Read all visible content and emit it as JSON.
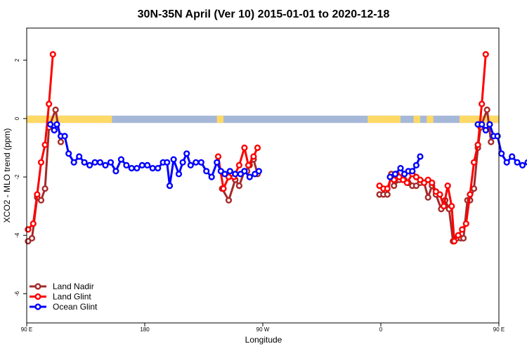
{
  "chart_data": {
    "type": "line",
    "title": "30N-35N April (Ver 10)   2015-01-01 to 2020-12-18",
    "xlabel": "Longitude",
    "ylabel": "XCO2 - MLO trend (ppm)",
    "xlim": [
      90,
      450
    ],
    "ylim": [
      -7,
      3.1
    ],
    "x_ticks": [
      {
        "value": 90,
        "label": "90 E"
      },
      {
        "value": 180,
        "label": "180"
      },
      {
        "value": 270,
        "label": "90 W"
      },
      {
        "value": 360,
        "label": "0"
      },
      {
        "value": 450,
        "label": "90 E"
      },
      {
        "value": 540,
        "label": "180"
      }
    ],
    "y_ticks": [
      {
        "value": 2,
        "label": "2"
      },
      {
        "value": 0,
        "label": "0"
      },
      {
        "value": -2,
        "label": "-2"
      },
      {
        "value": -4,
        "label": "-4"
      },
      {
        "value": -6,
        "label": "-6"
      }
    ],
    "land_ocean_band": {
      "y_range": [
        -0.15,
        0.1
      ],
      "ocean_color": "#a6b8d8",
      "land_color": "#ffd966",
      "land_ranges": [
        [
          90,
          155
        ],
        [
          235,
          240
        ],
        [
          350,
          375
        ],
        [
          385,
          390
        ],
        [
          395,
          400
        ],
        [
          420,
          450
        ],
        [
          450,
          515
        ]
      ]
    },
    "legend_position": "bottom-left",
    "series": [
      {
        "name": "Land Nadir",
        "color": "#a52a2a",
        "segments": [
          [
            [
              91,
              -4.2
            ],
            [
              94,
              -4.1
            ],
            [
              98,
              -2.7
            ],
            [
              101,
              -2.8
            ],
            [
              104,
              -2.4
            ],
            [
              107,
              -0.3
            ],
            [
              112,
              0.3
            ],
            [
              116,
              -0.8
            ]
          ],
          [
            [
              239,
              -2.4
            ],
            [
              244,
              -2.8
            ],
            [
              249,
              -2.1
            ],
            [
              252,
              -2.3
            ],
            [
              256,
              -1.8
            ],
            [
              258,
              -1.8
            ],
            [
              260,
              -1.6
            ],
            [
              263,
              -1.4
            ],
            [
              266,
              -1.9
            ]
          ],
          [
            [
              359,
              -2.6
            ],
            [
              362,
              -2.6
            ],
            [
              365,
              -2.6
            ],
            [
              368,
              -1.9
            ],
            [
              370,
              -2.3
            ],
            [
              374,
              -2.1
            ],
            [
              378,
              -2.1
            ],
            [
              381,
              -2.2
            ],
            [
              384,
              -2.3
            ],
            [
              387,
              -2.3
            ],
            [
              390,
              -2.2
            ],
            [
              393,
              -2.2
            ],
            [
              396,
              -2.7
            ],
            [
              399,
              -2.3
            ],
            [
              402,
              -2.6
            ],
            [
              406,
              -3.1
            ],
            [
              409,
              -2.8
            ],
            [
              412,
              -3.1
            ],
            [
              415,
              -4.2
            ],
            [
              418,
              -4.1
            ],
            [
              421,
              -4.1
            ],
            [
              423,
              -4.1
            ],
            [
              426,
              -2.8
            ],
            [
              428,
              -2.8
            ],
            [
              431,
              -2.4
            ],
            [
              434,
              -1
            ],
            [
              436,
              -0.3
            ],
            [
              441,
              0.3
            ],
            [
              444,
              -0.8
            ]
          ]
        ]
      },
      {
        "name": "Land Glint",
        "color": "#ff0000",
        "segments": [
          [
            [
              91,
              -3.8
            ],
            [
              95,
              -3.6
            ],
            [
              98,
              -2.6
            ],
            [
              101,
              -1.5
            ],
            [
              104,
              -0.9
            ],
            [
              107,
              0.5
            ],
            [
              110,
              2.2
            ]
          ],
          [
            [
              236,
              -1.3
            ],
            [
              240,
              -2.4
            ],
            [
              244,
              -2.0
            ],
            [
              248,
              -2.0
            ],
            [
              252,
              -1.6
            ],
            [
              256,
              -1.0
            ],
            [
              259,
              -1.6
            ],
            [
              263,
              -1.3
            ],
            [
              266,
              -1.0
            ]
          ],
          [
            [
              359,
              -2.3
            ],
            [
              362,
              -2.4
            ],
            [
              365,
              -2.4
            ],
            [
              368,
              -2.0
            ],
            [
              370,
              -2.1
            ],
            [
              372,
              -1.9
            ],
            [
              374,
              -2.0
            ],
            [
              377,
              -2.1
            ],
            [
              380,
              -2.2
            ],
            [
              384,
              -1.9
            ],
            [
              387,
              -2.0
            ],
            [
              390,
              -2.1
            ],
            [
              393,
              -2.2
            ],
            [
              396,
              -2.1
            ],
            [
              399,
              -2.2
            ],
            [
              402,
              -2.5
            ],
            [
              405,
              -2.6
            ],
            [
              408,
              -3.0
            ],
            [
              411,
              -2.3
            ],
            [
              414,
              -3.0
            ],
            [
              416,
              -4.2
            ],
            [
              419,
              -4.0
            ],
            [
              422,
              -3.8
            ],
            [
              425,
              -3.6
            ],
            [
              428,
              -2.6
            ],
            [
              431,
              -1.5
            ],
            [
              434,
              -0.9
            ],
            [
              437,
              0.5
            ],
            [
              440,
              2.2
            ]
          ]
        ]
      },
      {
        "name": "Ocean Glint",
        "color": "#0000ff",
        "segments": [
          [
            [
              108,
              -0.2
            ],
            [
              111,
              -0.4
            ],
            [
              113,
              -0.2
            ],
            [
              116,
              -0.6
            ],
            [
              119,
              -0.6
            ],
            [
              122,
              -1.2
            ],
            [
              126,
              -1.5
            ],
            [
              130,
              -1.3
            ],
            [
              134,
              -1.5
            ],
            [
              138,
              -1.6
            ],
            [
              142,
              -1.5
            ],
            [
              146,
              -1.5
            ],
            [
              150,
              -1.6
            ],
            [
              154,
              -1.5
            ],
            [
              158,
              -1.8
            ],
            [
              162,
              -1.4
            ],
            [
              166,
              -1.6
            ],
            [
              170,
              -1.7
            ],
            [
              174,
              -1.7
            ],
            [
              178,
              -1.6
            ],
            [
              182,
              -1.6
            ],
            [
              186,
              -1.7
            ],
            [
              190,
              -1.7
            ],
            [
              194,
              -1.5
            ],
            [
              197,
              -1.5
            ],
            [
              199,
              -2.3
            ],
            [
              202,
              -1.4
            ],
            [
              206,
              -1.9
            ],
            [
              209,
              -1.5
            ],
            [
              212,
              -1.2
            ],
            [
              215,
              -1.6
            ],
            [
              219,
              -1.5
            ],
            [
              223,
              -1.5
            ],
            [
              227,
              -1.8
            ],
            [
              231,
              -2.0
            ],
            [
              235,
              -1.5
            ],
            [
              238,
              -1.8
            ],
            [
              241,
              -1.9
            ],
            [
              245,
              -1.8
            ],
            [
              249,
              -1.9
            ],
            [
              253,
              -1.9
            ],
            [
              256,
              -1.8
            ],
            [
              260,
              -2.0
            ],
            [
              264,
              -1.9
            ],
            [
              267,
              -1.8
            ]
          ],
          [
            [
              367,
              -2.0
            ],
            [
              371,
              -1.9
            ],
            [
              375,
              -1.7
            ],
            [
              378,
              -1.9
            ],
            [
              381,
              -1.8
            ],
            [
              384,
              -1.8
            ],
            [
              387,
              -1.6
            ],
            [
              390,
              -1.3
            ]
          ],
          [
            [
              434,
              -0.2
            ],
            [
              437,
              -0.2
            ],
            [
              440,
              -0.4
            ],
            [
              443,
              -0.2
            ],
            [
              446,
              -0.6
            ],
            [
              449,
              -0.6
            ],
            [
              452,
              -1.2
            ],
            [
              456,
              -1.5
            ],
            [
              460,
              -1.3
            ],
            [
              464,
              -1.5
            ],
            [
              468,
              -1.6
            ],
            [
              472,
              -1.5
            ],
            [
              476,
              -1.5
            ]
          ]
        ]
      }
    ]
  }
}
